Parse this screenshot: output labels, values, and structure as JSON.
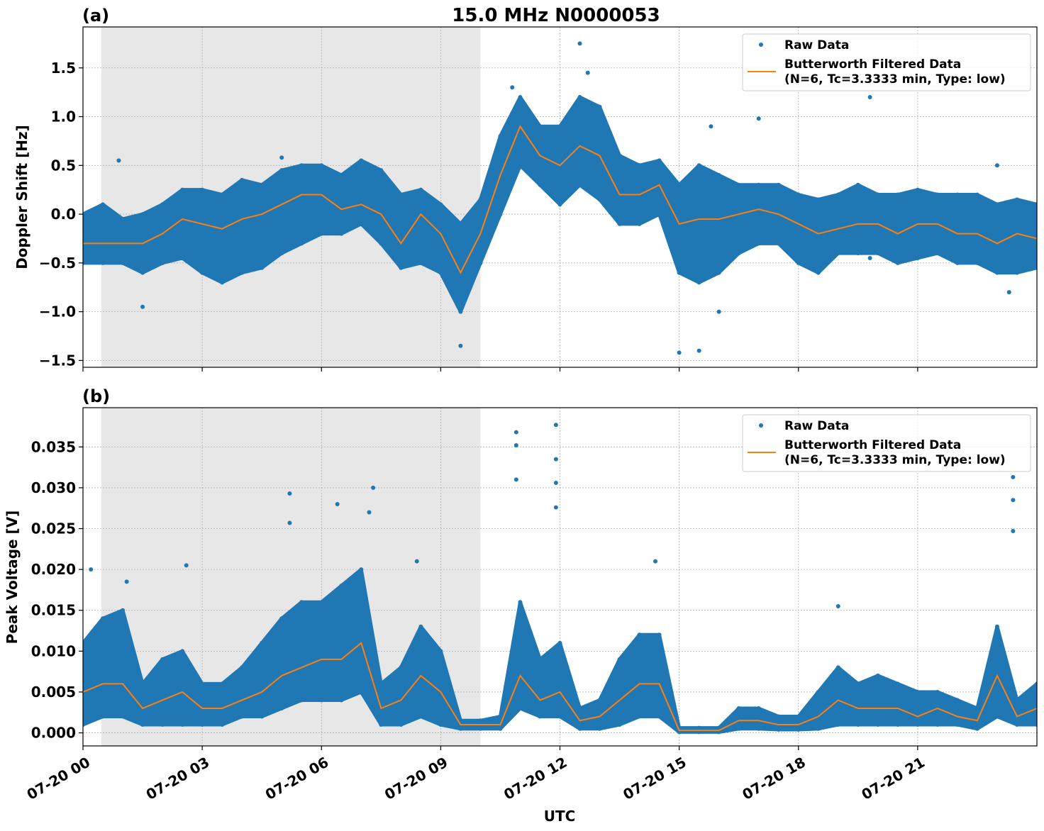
{
  "chart_data": [
    {
      "type": "scatter",
      "panel_label": "(a)",
      "title": "15.0 MHz N0000053",
      "xlabel": "",
      "ylabel": "Doppler Shift [Hz]",
      "xlim_hours": [
        0,
        24
      ],
      "ylim": [
        -1.57,
        1.92
      ],
      "yticks": [
        -1.5,
        -1.0,
        -0.5,
        0.0,
        0.5,
        1.0,
        1.5
      ],
      "ytick_labels": [
        "−1.5",
        "−1.0",
        "−0.5",
        "0.0",
        "0.5",
        "1.0",
        "1.5"
      ],
      "grid": true,
      "legend_placement": "top-right",
      "shaded_interval_hours": [
        0.46,
        10.0
      ],
      "x_hours": [
        0,
        0.5,
        1,
        1.5,
        2,
        2.5,
        3,
        3.5,
        4,
        4.5,
        5,
        5.5,
        6,
        6.5,
        7,
        7.5,
        8,
        8.5,
        9,
        9.5,
        10,
        10.5,
        11,
        11.5,
        12,
        12.5,
        13,
        13.5,
        14,
        14.5,
        15,
        15.5,
        16,
        16.5,
        17,
        17.5,
        18,
        18.5,
        19,
        19.5,
        20,
        20.5,
        21,
        21.5,
        22,
        22.5,
        23,
        23.5,
        24
      ],
      "series": [
        {
          "name": "Butterworth Filtered Data\n(N=6, Tc=3.3333 min, Type: low)",
          "role": "filtered",
          "color": "#ff7f0e",
          "values": [
            -0.3,
            -0.3,
            -0.3,
            -0.3,
            -0.2,
            -0.05,
            -0.1,
            -0.15,
            -0.05,
            0.0,
            0.1,
            0.2,
            0.2,
            0.05,
            0.1,
            0.0,
            -0.3,
            0.0,
            -0.2,
            -0.6,
            -0.2,
            0.4,
            0.9,
            0.6,
            0.5,
            0.7,
            0.6,
            0.2,
            0.2,
            0.3,
            -0.1,
            -0.05,
            -0.05,
            0.0,
            0.05,
            0.0,
            -0.1,
            -0.2,
            -0.15,
            -0.1,
            -0.1,
            -0.2,
            -0.1,
            -0.1,
            -0.2,
            -0.2,
            -0.3,
            -0.2,
            -0.25
          ]
        },
        {
          "name": "Raw Data",
          "role": "raw",
          "color": "#1f77b4",
          "lower": [
            -0.5,
            -0.5,
            -0.5,
            -0.6,
            -0.5,
            -0.45,
            -0.6,
            -0.7,
            -0.6,
            -0.55,
            -0.4,
            -0.3,
            -0.2,
            -0.2,
            -0.1,
            -0.3,
            -0.55,
            -0.5,
            -0.6,
            -1.0,
            -0.5,
            0.0,
            0.5,
            0.3,
            0.1,
            0.3,
            0.15,
            -0.1,
            -0.1,
            0.0,
            -0.6,
            -0.7,
            -0.6,
            -0.4,
            -0.3,
            -0.3,
            -0.5,
            -0.6,
            -0.4,
            -0.4,
            -0.4,
            -0.5,
            -0.45,
            -0.4,
            -0.5,
            -0.5,
            -0.6,
            -0.6,
            -0.55
          ],
          "upper": [
            0.0,
            0.1,
            -0.05,
            0.0,
            0.1,
            0.25,
            0.25,
            0.2,
            0.35,
            0.3,
            0.45,
            0.5,
            0.5,
            0.4,
            0.55,
            0.45,
            0.2,
            0.25,
            0.1,
            -0.1,
            0.15,
            0.8,
            1.2,
            0.9,
            0.9,
            1.2,
            1.1,
            0.6,
            0.5,
            0.55,
            0.3,
            0.5,
            0.4,
            0.3,
            0.3,
            0.3,
            0.2,
            0.15,
            0.2,
            0.3,
            0.2,
            0.2,
            0.25,
            0.2,
            0.2,
            0.2,
            0.1,
            0.15,
            0.1
          ],
          "extremes": [
            [
              0.9,
              0.55
            ],
            [
              1.5,
              -0.95
            ],
            [
              5.0,
              0.58
            ],
            [
              9.5,
              -1.35
            ],
            [
              10.8,
              1.3
            ],
            [
              12.5,
              1.75
            ],
            [
              12.7,
              1.45
            ],
            [
              15.0,
              -1.42
            ],
            [
              15.5,
              -1.4
            ],
            [
              15.8,
              0.9
            ],
            [
              16.0,
              -1.0
            ],
            [
              17.0,
              0.98
            ],
            [
              19.8,
              1.2
            ],
            [
              19.8,
              -0.45
            ],
            [
              23.0,
              0.5
            ],
            [
              23.3,
              -0.8
            ]
          ]
        }
      ]
    },
    {
      "type": "scatter",
      "panel_label": "(b)",
      "title": "",
      "xlabel": "UTC",
      "ylabel": "Peak Voltage [V]",
      "xlim_hours": [
        0,
        24
      ],
      "ylim": [
        -0.0016,
        0.0398
      ],
      "yticks": [
        0.0,
        0.005,
        0.01,
        0.015,
        0.02,
        0.025,
        0.03,
        0.035
      ],
      "ytick_labels": [
        "0.000",
        "0.005",
        "0.010",
        "0.015",
        "0.020",
        "0.025",
        "0.030",
        "0.035"
      ],
      "xtick_hours": [
        0,
        3,
        6,
        9,
        12,
        15,
        18,
        21
      ],
      "xtick_labels": [
        "07-20 00",
        "07-20 03",
        "07-20 06",
        "07-20 09",
        "07-20 12",
        "07-20 15",
        "07-20 18",
        "07-20 21"
      ],
      "grid": true,
      "legend_placement": "top-right",
      "shaded_interval_hours": [
        0.46,
        10.0
      ],
      "x_hours": [
        0,
        0.5,
        1,
        1.5,
        2,
        2.5,
        3,
        3.5,
        4,
        4.5,
        5,
        5.5,
        6,
        6.5,
        7,
        7.5,
        8,
        8.5,
        9,
        9.5,
        10,
        10.5,
        11,
        11.5,
        12,
        12.5,
        13,
        13.5,
        14,
        14.5,
        15,
        15.5,
        16,
        16.5,
        17,
        17.5,
        18,
        18.5,
        19,
        19.5,
        20,
        20.5,
        21,
        21.5,
        22,
        22.5,
        23,
        23.5,
        24
      ],
      "series": [
        {
          "name": "Butterworth Filtered Data\n(N=6, Tc=3.3333 min, Type: low)",
          "role": "filtered",
          "color": "#ff7f0e",
          "values": [
            0.005,
            0.006,
            0.006,
            0.003,
            0.004,
            0.005,
            0.003,
            0.003,
            0.004,
            0.005,
            0.007,
            0.008,
            0.009,
            0.009,
            0.011,
            0.003,
            0.004,
            0.007,
            0.005,
            0.001,
            0.001,
            0.001,
            0.007,
            0.004,
            0.005,
            0.0015,
            0.002,
            0.004,
            0.006,
            0.006,
            0.0003,
            0.0003,
            0.0003,
            0.0015,
            0.0015,
            0.001,
            0.001,
            0.002,
            0.004,
            0.003,
            0.003,
            0.003,
            0.002,
            0.003,
            0.002,
            0.0015,
            0.007,
            0.002,
            0.003
          ]
        },
        {
          "name": "Raw Data",
          "role": "raw",
          "color": "#1f77b4",
          "lower": [
            0.001,
            0.002,
            0.002,
            0.001,
            0.001,
            0.001,
            0.001,
            0.001,
            0.002,
            0.002,
            0.003,
            0.004,
            0.004,
            0.004,
            0.005,
            0.001,
            0.001,
            0.002,
            0.001,
            0.0005,
            0.0005,
            0.0005,
            0.003,
            0.002,
            0.002,
            0.0005,
            0.0005,
            0.001,
            0.002,
            0.002,
            0.0001,
            0.0001,
            0.0001,
            0.0005,
            0.0005,
            0.0004,
            0.0004,
            0.0005,
            0.001,
            0.001,
            0.001,
            0.001,
            0.001,
            0.001,
            0.001,
            0.0005,
            0.002,
            0.001,
            0.001
          ],
          "upper": [
            0.011,
            0.014,
            0.015,
            0.006,
            0.009,
            0.01,
            0.006,
            0.006,
            0.008,
            0.011,
            0.014,
            0.016,
            0.016,
            0.018,
            0.02,
            0.006,
            0.008,
            0.013,
            0.01,
            0.0015,
            0.0015,
            0.002,
            0.016,
            0.009,
            0.011,
            0.003,
            0.004,
            0.009,
            0.012,
            0.012,
            0.0006,
            0.0006,
            0.0006,
            0.003,
            0.003,
            0.002,
            0.002,
            0.005,
            0.008,
            0.006,
            0.007,
            0.006,
            0.005,
            0.005,
            0.004,
            0.003,
            0.013,
            0.004,
            0.006
          ],
          "extremes": [
            [
              0.2,
              0.02
            ],
            [
              1.1,
              0.0185
            ],
            [
              2.6,
              0.0205
            ],
            [
              5.2,
              0.0293
            ],
            [
              5.2,
              0.0257
            ],
            [
              6.4,
              0.028
            ],
            [
              7.3,
              0.03
            ],
            [
              7.2,
              0.027
            ],
            [
              8.4,
              0.021
            ],
            [
              10.9,
              0.0368
            ],
            [
              10.9,
              0.0352
            ],
            [
              10.9,
              0.031
            ],
            [
              11.9,
              0.0377
            ],
            [
              11.9,
              0.0335
            ],
            [
              11.9,
              0.0306
            ],
            [
              11.9,
              0.0276
            ],
            [
              14.4,
              0.021
            ],
            [
              19.0,
              0.0155
            ],
            [
              23.4,
              0.0313
            ],
            [
              23.4,
              0.0285
            ],
            [
              23.4,
              0.0247
            ]
          ]
        }
      ]
    }
  ],
  "legend": {
    "raw_label": "Raw Data",
    "filtered_label_line1": "Butterworth Filtered Data",
    "filtered_label_line2": "(N=6, Tc=3.3333 min, Type: low)"
  },
  "colors": {
    "raw": "#1f77b4",
    "filtered": "#ff7f0e",
    "shade": "#e7e7e7",
    "grid": "#b0b0b0"
  }
}
